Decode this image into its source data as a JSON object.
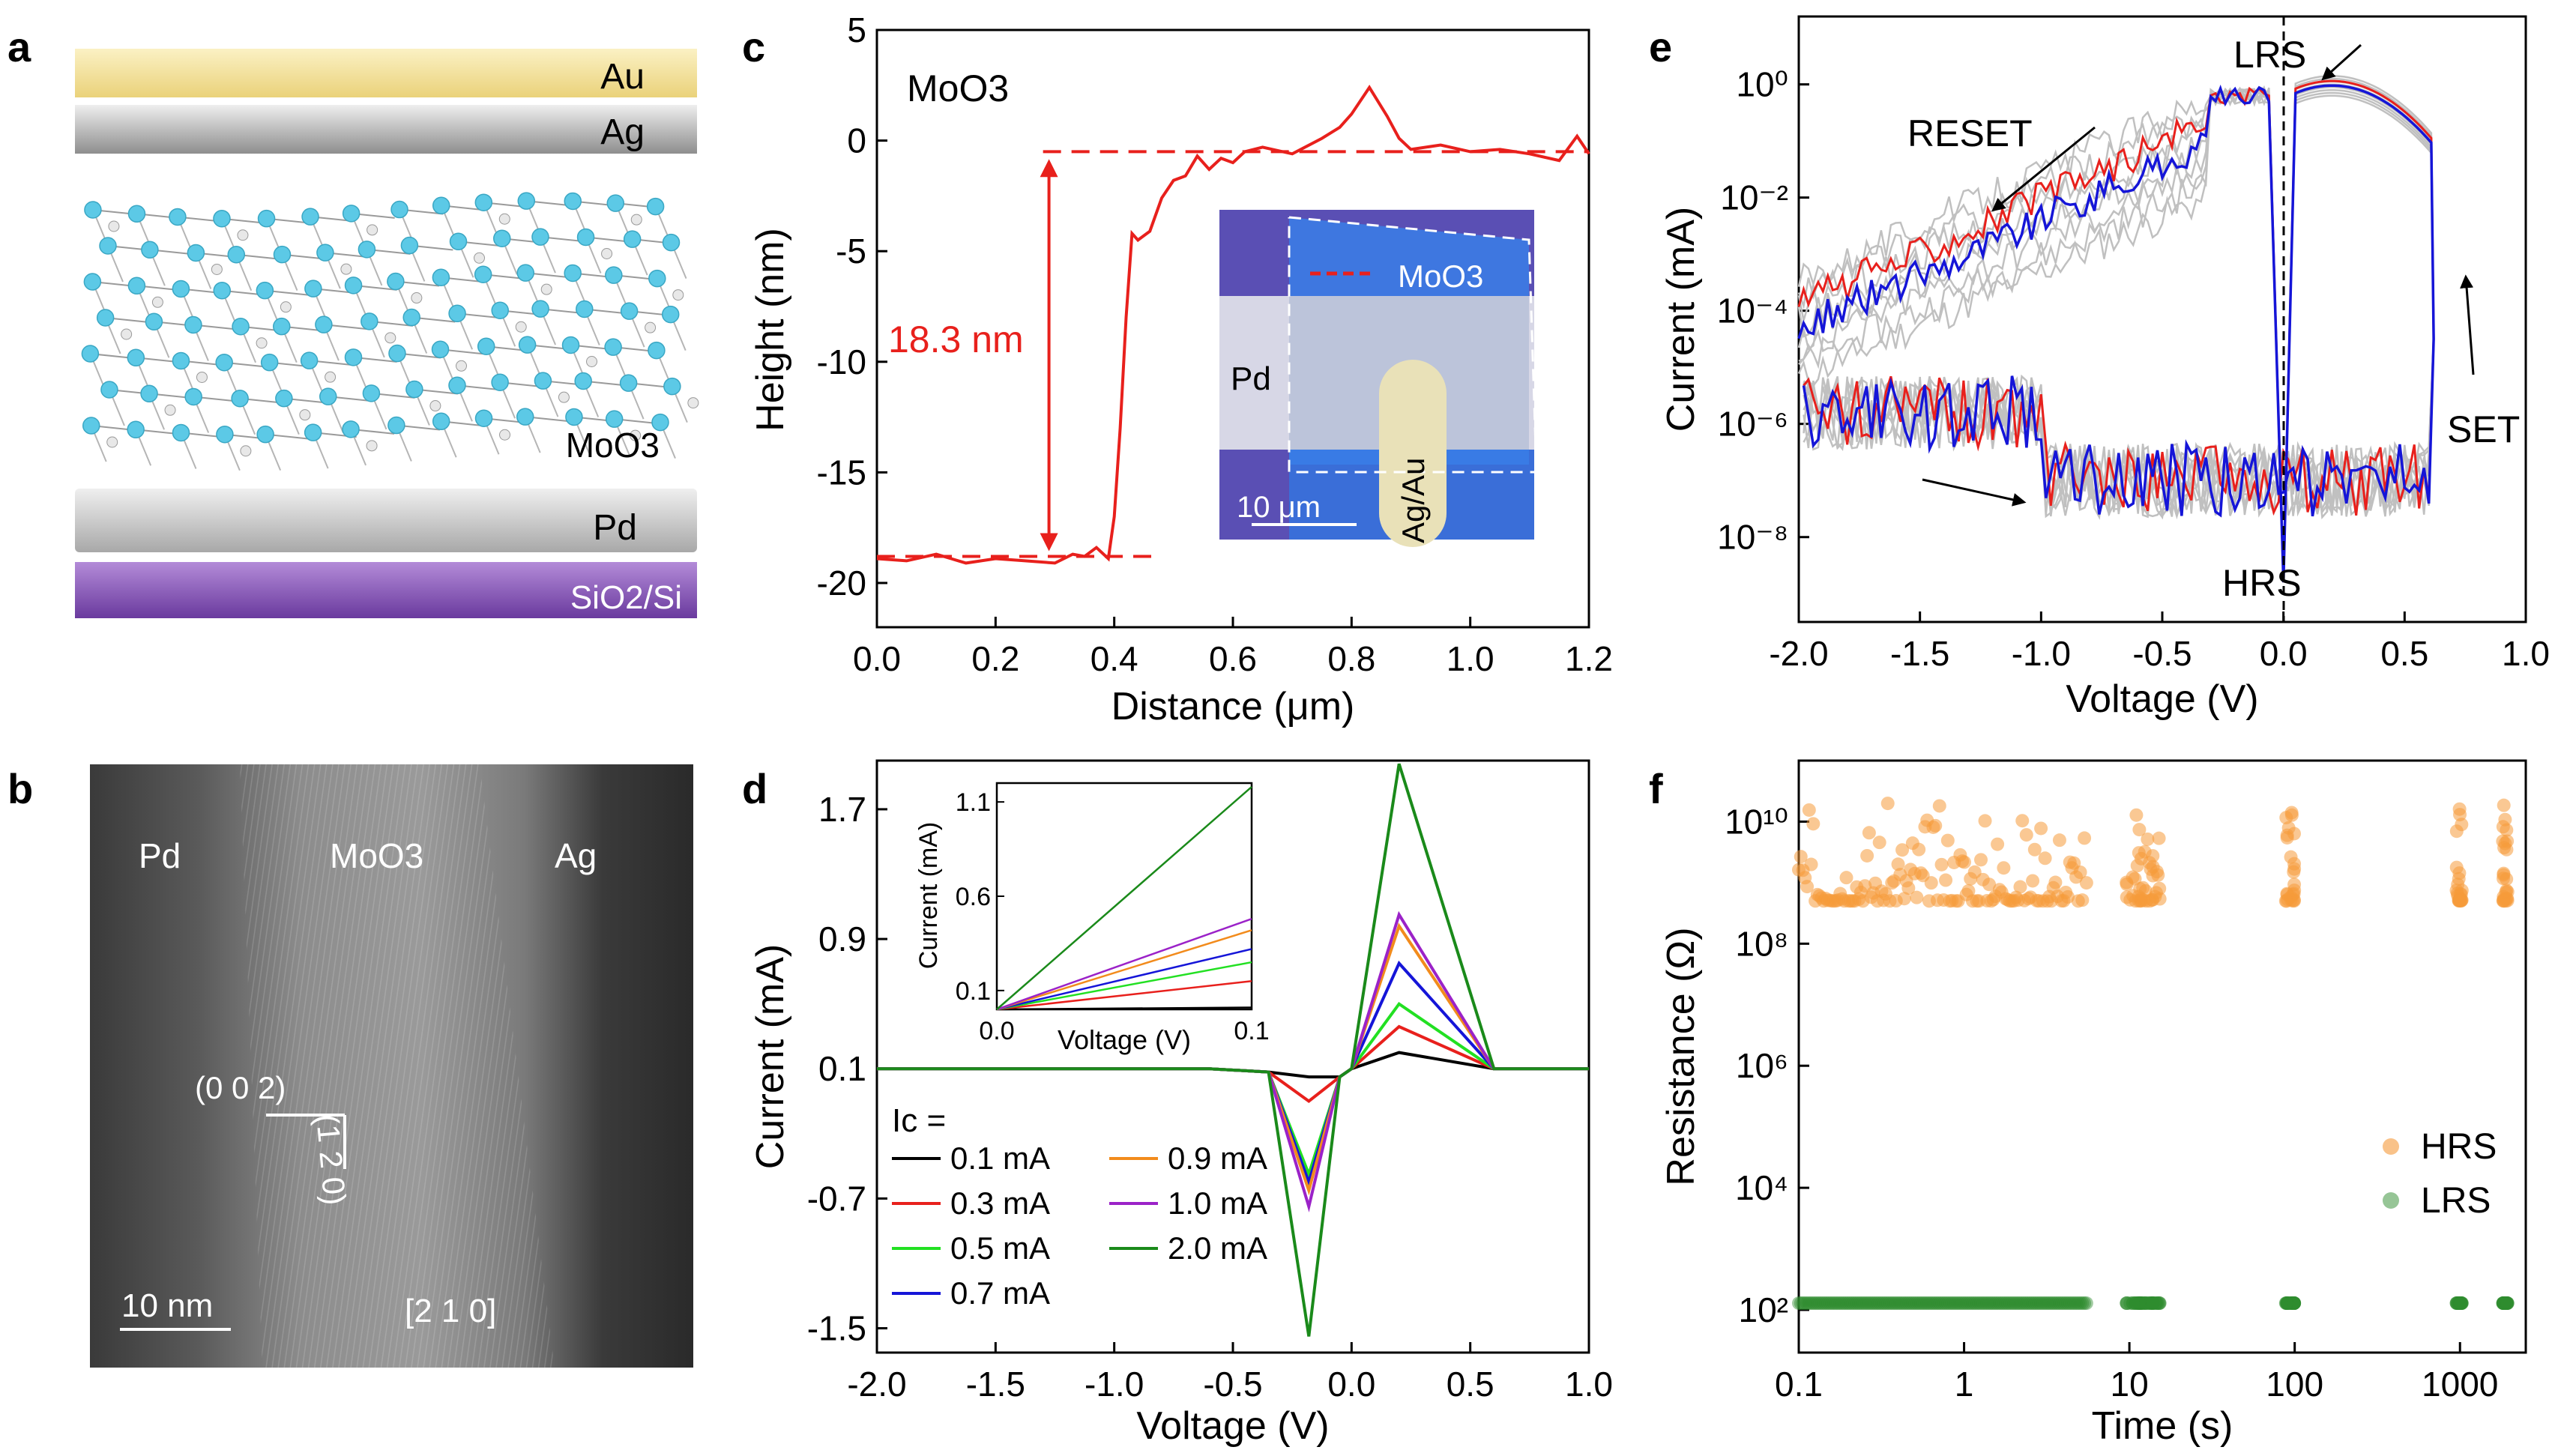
{
  "panels": {
    "a": {
      "letter": "a",
      "layers": [
        "Au",
        "Ag",
        "MoO3",
        "Pd",
        "SiO2/Si"
      ],
      "colors": {
        "au": "#f7e39a",
        "ag": "#b9b9b9",
        "mo": "#5cc9e6",
        "pd": "#c9c9c9",
        "si": "#7a4fae"
      }
    },
    "b": {
      "letter": "b",
      "left": "Pd",
      "center": "MoO3",
      "right": "Ag",
      "plane1": "(0 0 2)",
      "plane2": "(1 2 0)",
      "axis": "[2 1 0]",
      "scalebar": "10 nm"
    },
    "c": {
      "letter": "c",
      "label": "MoO3",
      "step": "18.3 nm",
      "inset": {
        "flake": "MoO3",
        "pd": "Pd",
        "top": "Ag/Au",
        "scalebar": "10 μm"
      },
      "chart_data": {
        "type": "line",
        "xlabel": "Distance (μm)",
        "ylabel": "Height (nm)",
        "xlim": [
          0,
          1.2
        ],
        "ylim": [
          -22,
          5
        ],
        "xticks": [
          "0.0",
          "0.2",
          "0.4",
          "0.6",
          "0.8",
          "1.0",
          "1.2"
        ],
        "yticks": [
          "5",
          "0",
          "-5",
          "-10",
          "-15",
          "-20"
        ],
        "x": [
          0,
          0.05,
          0.1,
          0.15,
          0.2,
          0.25,
          0.3,
          0.33,
          0.35,
          0.37,
          0.39,
          0.4,
          0.41,
          0.42,
          0.43,
          0.44,
          0.46,
          0.48,
          0.5,
          0.52,
          0.54,
          0.56,
          0.58,
          0.6,
          0.62,
          0.65,
          0.7,
          0.75,
          0.78,
          0.8,
          0.83,
          0.86,
          0.88,
          0.9,
          0.95,
          1.0,
          1.05,
          1.1,
          1.15,
          1.18,
          1.2
        ],
        "y": [
          -18.9,
          -19,
          -18.7,
          -19.1,
          -18.9,
          -19.0,
          -19.1,
          -18.7,
          -18.8,
          -18.4,
          -18.9,
          -17,
          -13,
          -8,
          -4.2,
          -4.5,
          -4.1,
          -2.6,
          -1.8,
          -1.6,
          -0.7,
          -1.3,
          -0.8,
          -1.0,
          -0.5,
          -0.3,
          -0.6,
          0.1,
          0.6,
          1.2,
          2.4,
          1.1,
          0.1,
          -0.4,
          -0.2,
          -0.5,
          -0.4,
          -0.6,
          -0.9,
          0.2,
          -0.6
        ],
        "color": "#e8201c"
      }
    },
    "d": {
      "letter": "d",
      "ic_label": "Ic =",
      "legend": [
        "0.1 mA",
        "0.3 mA",
        "0.5 mA",
        "0.7 mA",
        "0.9 mA",
        "1.0 mA",
        "2.0 mA"
      ],
      "inset": {
        "xlabel": "Voltage (V)",
        "ylabel": "Current (mA)",
        "xticks": [
          "0.0",
          "0.1"
        ],
        "yticks": [
          "1.1",
          "0.6",
          "0.1"
        ]
      },
      "chart_data": {
        "type": "line",
        "xlabel": "Voltage (V)",
        "ylabel": "Current (mA)",
        "xlim": [
          -2.0,
          1.0
        ],
        "ylim": [
          -1.65,
          2.0
        ],
        "xticks": [
          "-2.0",
          "-1.5",
          "-1.0",
          "-0.5",
          "0.0",
          "0.5",
          "1.0"
        ],
        "yticks": [
          "1.7",
          "0.9",
          "0.1",
          "-0.7",
          "-1.5"
        ],
        "series": [
          {
            "name": "0.1 mA",
            "color": "#000000",
            "peak_pos": 0.2,
            "peak_neg": 0.05
          },
          {
            "name": "0.3 mA",
            "color": "#e8201c",
            "peak_pos": 0.36,
            "peak_neg": -0.1
          },
          {
            "name": "0.5 mA",
            "color": "#22e022",
            "peak_pos": 0.5,
            "peak_neg": -0.55
          },
          {
            "name": "0.7 mA",
            "color": "#1515d8",
            "peak_pos": 0.75,
            "peak_neg": -0.6
          },
          {
            "name": "0.9 mA",
            "color": "#f28b1c",
            "peak_pos": 0.98,
            "peak_neg": -0.65
          },
          {
            "name": "1.0 mA",
            "color": "#9b22c8",
            "peak_pos": 1.05,
            "peak_neg": -0.75
          },
          {
            "name": "2.0 mA",
            "color": "#1a8a1a",
            "peak_pos": 1.98,
            "peak_neg": -1.55
          }
        ]
      }
    },
    "e": {
      "letter": "e",
      "labels": {
        "lrs": "LRS",
        "reset": "RESET",
        "set": "SET",
        "hrs": "HRS"
      },
      "chart_data": {
        "type": "line",
        "xlabel": "Voltage (V)",
        "ylabel": "Current (mA)",
        "xlim": [
          -2.0,
          1.0
        ],
        "ylim_log10": [
          -9.5,
          1.2
        ],
        "yscale": "log",
        "xticks": [
          "-2.0",
          "-1.5",
          "-1.0",
          "-0.5",
          "0.0",
          "0.5",
          "1.0"
        ],
        "yticks": [
          "10⁰",
          "10⁻²",
          "10⁻⁴",
          "10⁻⁶",
          "10⁻⁸"
        ],
        "series_colors": [
          "#c0c0c0",
          "#e8201c",
          "#1515d8"
        ]
      }
    },
    "f": {
      "letter": "f",
      "legend": [
        "HRS",
        "LRS"
      ],
      "chart_data": {
        "type": "scatter",
        "xlabel": "Time (s)",
        "ylabel": "Resistance (Ω)",
        "xscale": "log",
        "yscale": "log",
        "xlim": [
          0.1,
          2500
        ],
        "ylim_log10": [
          1.3,
          11.0
        ],
        "xticks": [
          "0.1",
          "1",
          "10",
          "100",
          "1000"
        ],
        "yticks": [
          "10¹⁰",
          "10⁸",
          "10⁶",
          "10⁴",
          "10²"
        ],
        "hrs_color": "#f59a3a",
        "lrs_color": "#2e8b2e",
        "hrs_level_ohm": 500000000.0,
        "lrs_level_ohm": 130
      }
    }
  }
}
